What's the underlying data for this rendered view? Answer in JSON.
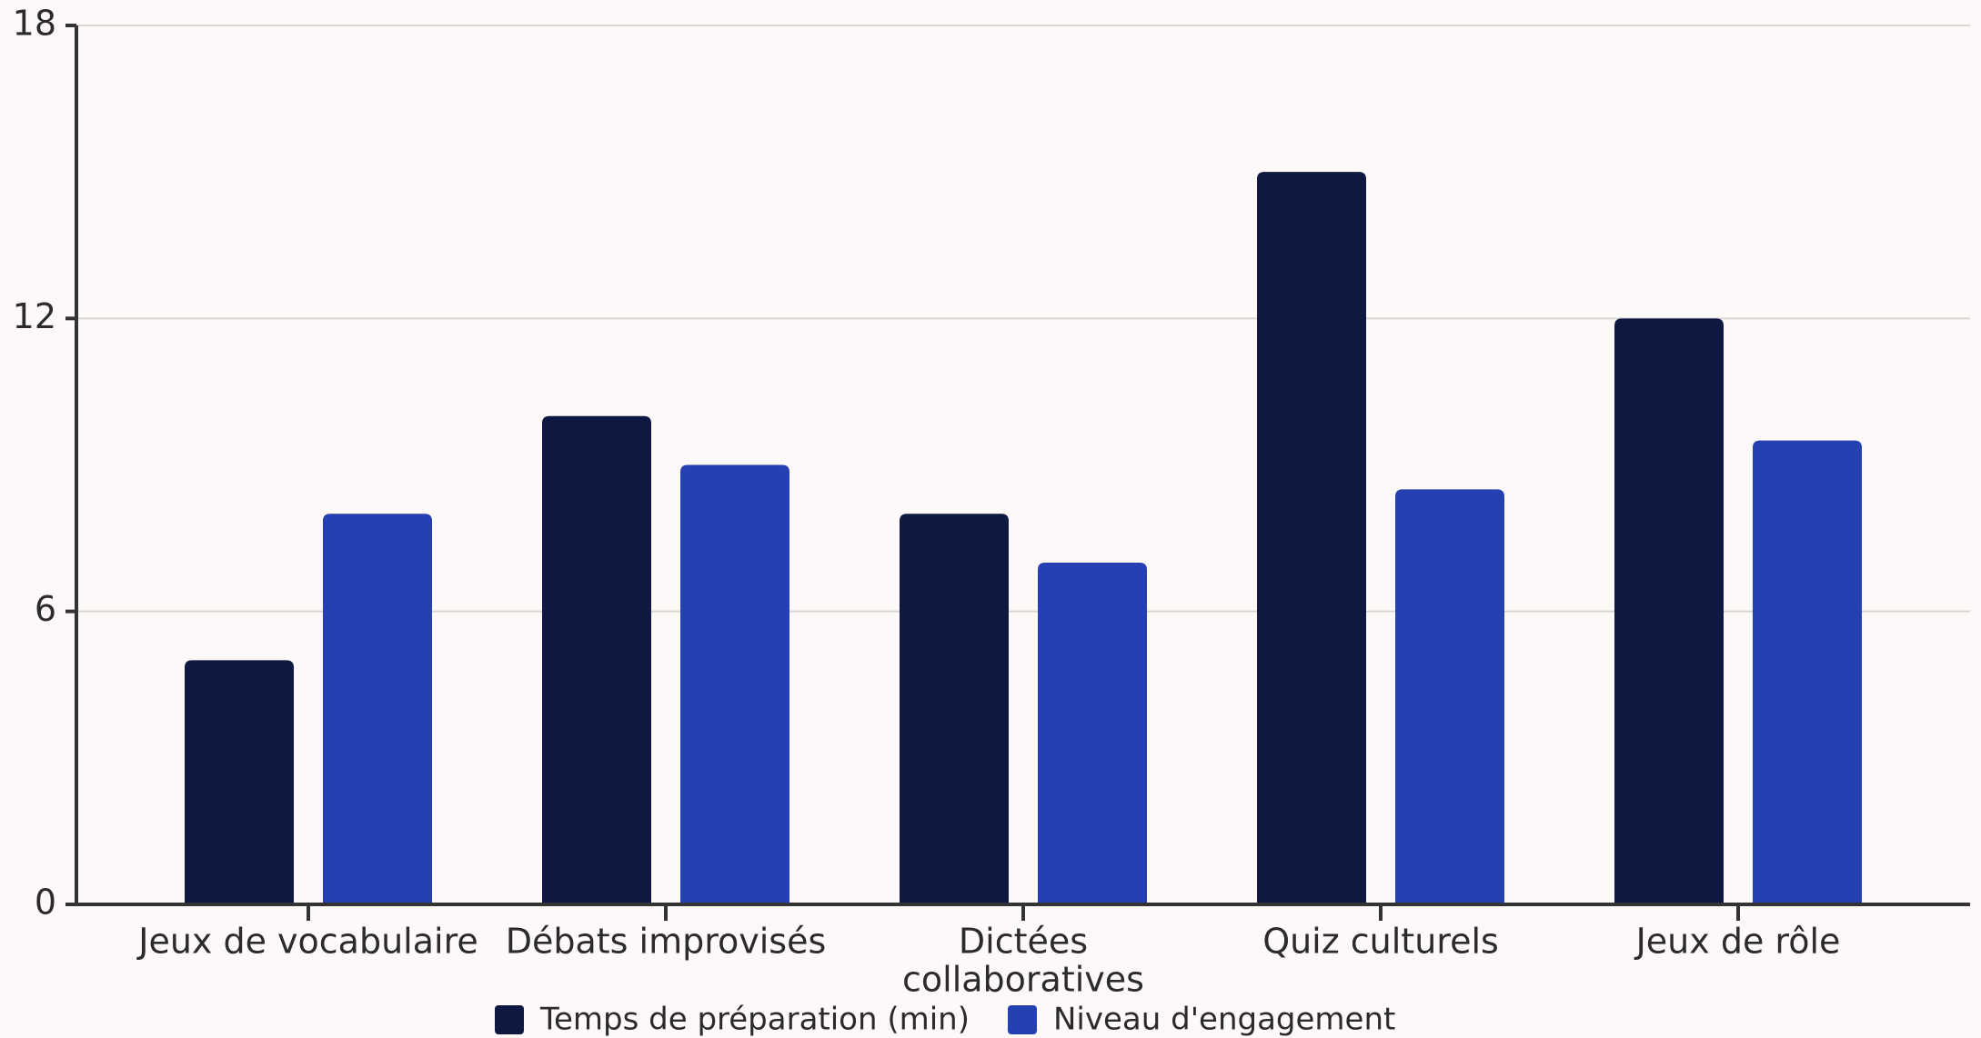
{
  "chart_data": {
    "type": "bar",
    "categories": [
      [
        "Jeux de vocabulaire"
      ],
      [
        "Débats improvisés"
      ],
      [
        "Dictées",
        "collaboratives"
      ],
      [
        "Quiz culturels"
      ],
      [
        "Jeux de rôle"
      ]
    ],
    "series": [
      {
        "name": "Temps de préparation (min)",
        "color": "#0f1841",
        "values": [
          5,
          10,
          8,
          15,
          12
        ]
      },
      {
        "name": "Niveau d'engagement",
        "color": "#2540b0",
        "values": [
          8,
          9,
          7,
          8.5,
          9.5
        ]
      }
    ],
    "y_ticks": [
      0,
      6,
      12,
      18
    ],
    "ylim": [
      0,
      18
    ],
    "grid": true,
    "legend_position": "bottom-center",
    "colors": {
      "background": "#fdf9f8",
      "grid": "#d8d5d3",
      "axis": "#333333"
    }
  }
}
